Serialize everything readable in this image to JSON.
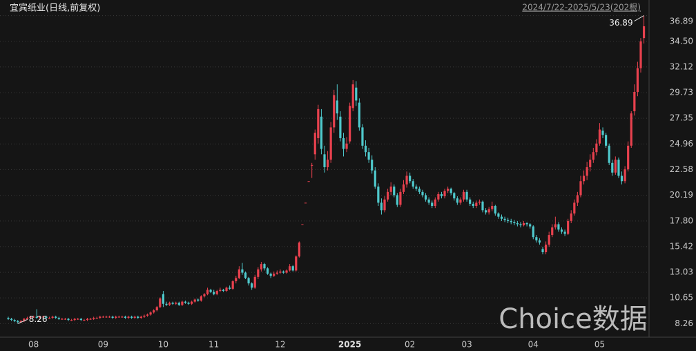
{
  "chart_data": {
    "type": "candlestick",
    "title": "宜宾纸业(日线,前复权)",
    "subtitle": "2024/7/22-2025/5/23(202根)",
    "watermark": "Choice数据",
    "up_color": "#e8414e",
    "down_color": "#4fc9cc",
    "ylim": [
      7.0,
      37.7
    ],
    "yticks": [
      8.26,
      10.65,
      13.03,
      15.42,
      {
        "value": 17.8,
        "label": "17.80"
      },
      20.19,
      22.58,
      24.96,
      27.35,
      29.73,
      32.12,
      {
        "value": 34.5,
        "label": "34.50"
      },
      36.89
    ],
    "grid": true,
    "categories": [
      null,
      null,
      null,
      null,
      null,
      null,
      null,
      null,
      "08",
      null,
      null,
      null,
      null,
      null,
      null,
      null,
      null,
      null,
      null,
      null,
      null,
      null,
      null,
      null,
      null,
      null,
      null,
      null,
      null,
      null,
      "09",
      null,
      null,
      null,
      null,
      null,
      null,
      null,
      null,
      null,
      null,
      null,
      null,
      null,
      null,
      null,
      null,
      null,
      null,
      "10",
      null,
      null,
      null,
      null,
      null,
      null,
      null,
      null,
      null,
      null,
      null,
      null,
      null,
      null,
      null,
      "11",
      null,
      null,
      null,
      null,
      null,
      null,
      null,
      null,
      null,
      null,
      null,
      null,
      null,
      null,
      null,
      null,
      null,
      null,
      null,
      null,
      "12",
      null,
      null,
      null,
      null,
      null,
      null,
      null,
      null,
      null,
      null,
      null,
      null,
      null,
      null,
      null,
      null,
      null,
      null,
      null,
      null,
      null,
      "2025",
      null,
      null,
      null,
      null,
      null,
      null,
      null,
      null,
      null,
      null,
      null,
      null,
      null,
      null,
      null,
      null,
      null,
      null,
      "02",
      null,
      null,
      null,
      null,
      null,
      null,
      null,
      null,
      null,
      null,
      null,
      null,
      null,
      null,
      null,
      null,
      null,
      "03",
      null,
      null,
      null,
      null,
      null,
      null,
      null,
      null,
      null,
      null,
      null,
      null,
      null,
      null,
      null,
      null,
      null,
      null,
      null,
      null,
      "04",
      null,
      null,
      null,
      null,
      null,
      null,
      null,
      null,
      null,
      null,
      null,
      null,
      null,
      null,
      null,
      null,
      null,
      null,
      null,
      null,
      "05",
      null,
      null,
      null,
      null,
      null,
      null,
      null,
      null,
      null,
      null,
      null,
      null,
      null,
      null
    ],
    "open": [
      8.8,
      8.7,
      8.6,
      8.5,
      8.4,
      8.5,
      8.7,
      8.8,
      8.9,
      8.9,
      8.8,
      8.9,
      8.9,
      8.8,
      8.8,
      8.9,
      8.8,
      8.7,
      8.7,
      8.7,
      8.6,
      8.6,
      8.7,
      8.7,
      8.6,
      8.6,
      8.7,
      8.7,
      8.8,
      8.8,
      8.9,
      8.9,
      8.9,
      8.9,
      8.8,
      8.9,
      8.9,
      8.9,
      8.8,
      8.9,
      8.8,
      8.9,
      8.8,
      8.9,
      9.0,
      9.1,
      9.3,
      9.5,
      9.8,
      11.0,
      10.1,
      10.0,
      10.2,
      10.1,
      10.2,
      10.0,
      10.3,
      10.2,
      10.1,
      10.3,
      10.5,
      10.4,
      10.8,
      11.0,
      11.4,
      11.2,
      11.0,
      11.3,
      11.4,
      11.3,
      11.6,
      11.5,
      12.2,
      12.5,
      13.3,
      13.0,
      12.5,
      12.0,
      11.6,
      12.6,
      13.3,
      13.8,
      13.4,
      12.9,
      12.7,
      12.9,
      13.0,
      13.1,
      13.0,
      13.2,
      13.6,
      13.2,
      14.5,
      17.5,
      19.5,
      21.5,
      23.0,
      24.0,
      25.5,
      27.5,
      24.0,
      22.8,
      23.5,
      26.5,
      29.0,
      27.5,
      25.5,
      24.5,
      25.2,
      28.3,
      30.2,
      28.8,
      26.5,
      24.8,
      24.2,
      23.5,
      22.5,
      21.0,
      19.5,
      18.8,
      19.8,
      20.5,
      21.0,
      20.2,
      19.3,
      20.5,
      21.2,
      22.0,
      21.5,
      21.0,
      20.8,
      20.5,
      20.2,
      19.8,
      19.5,
      19.2,
      19.8,
      20.3,
      20.1,
      20.6,
      20.8,
      20.4,
      19.9,
      19.5,
      19.8,
      20.5,
      19.8,
      19.4,
      19.2,
      19.5,
      19.6,
      18.8,
      18.6,
      18.9,
      19.2,
      18.5,
      18.2,
      18.0,
      17.9,
      17.8,
      17.7,
      17.6,
      17.5,
      17.4,
      17.6,
      17.5,
      17.3,
      16.3,
      16.0,
      15.2,
      14.9,
      15.6,
      16.5,
      17.2,
      17.5,
      17.0,
      16.8,
      16.6,
      17.8,
      18.5,
      19.5,
      20.2,
      21.5,
      22.0,
      22.8,
      23.5,
      24.2,
      25.0,
      26.2,
      25.8,
      24.8,
      23.2,
      22.3,
      23.5,
      22.0,
      21.5,
      22.6,
      24.8,
      28.0,
      29.8,
      32.0,
      34.8
    ],
    "high": [
      8.9,
      8.8,
      8.7,
      8.6,
      8.6,
      8.8,
      8.9,
      9.0,
      9.0,
      9.6,
      9.0,
      9.0,
      9.0,
      8.9,
      9.0,
      9.0,
      8.9,
      8.8,
      8.8,
      8.8,
      8.7,
      8.8,
      8.8,
      8.8,
      8.7,
      8.8,
      8.8,
      8.9,
      8.9,
      9.0,
      9.0,
      9.0,
      9.0,
      9.0,
      9.0,
      9.0,
      9.0,
      9.0,
      9.0,
      9.0,
      9.0,
      9.0,
      9.0,
      9.1,
      9.2,
      9.4,
      9.6,
      9.9,
      10.7,
      11.3,
      10.3,
      10.3,
      10.3,
      10.3,
      10.3,
      10.4,
      10.4,
      10.3,
      10.4,
      10.6,
      10.6,
      10.9,
      11.1,
      11.6,
      11.5,
      11.4,
      11.4,
      11.6,
      11.5,
      11.7,
      11.8,
      12.3,
      12.7,
      13.6,
      13.9,
      13.1,
      12.6,
      12.1,
      12.8,
      13.5,
      14.0,
      13.9,
      13.5,
      13.0,
      13.1,
      13.2,
      13.3,
      13.2,
      13.3,
      13.8,
      13.7,
      14.6,
      15.9,
      17.5,
      19.5,
      21.5,
      23.2,
      26.3,
      28.6,
      28.2,
      24.8,
      24.3,
      27.0,
      30.0,
      30.5,
      28.0,
      26.0,
      25.6,
      28.8,
      30.9,
      30.8,
      29.2,
      26.8,
      25.3,
      24.6,
      23.9,
      22.8,
      21.3,
      19.9,
      20.1,
      20.8,
      21.4,
      21.2,
      20.4,
      20.8,
      21.6,
      22.4,
      22.3,
      21.7,
      21.2,
      21.0,
      20.7,
      20.4,
      20.0,
      19.7,
      20.0,
      20.5,
      20.5,
      20.8,
      21.0,
      20.9,
      20.5,
      20.1,
      20.0,
      20.7,
      20.7,
      20.0,
      19.6,
      19.7,
      19.8,
      19.7,
      19.0,
      19.1,
      19.6,
      19.3,
      18.6,
      18.4,
      18.2,
      18.1,
      18.0,
      17.9,
      17.8,
      17.7,
      17.8,
      17.7,
      17.6,
      17.4,
      16.5,
      16.2,
      15.4,
      15.9,
      16.8,
      17.5,
      18.2,
      17.7,
      17.2,
      17.0,
      18.0,
      18.8,
      19.8,
      20.5,
      22.0,
      22.5,
      23.3,
      24.0,
      24.6,
      25.4,
      26.9,
      26.5,
      26.0,
      25.0,
      23.5,
      23.8,
      23.7,
      22.4,
      22.9,
      25.2,
      28.0,
      30.5,
      32.6,
      34.8,
      36.89
    ],
    "low": [
      8.6,
      8.5,
      8.4,
      8.26,
      8.3,
      8.4,
      8.6,
      8.7,
      8.8,
      8.7,
      8.7,
      8.8,
      8.7,
      8.7,
      8.7,
      8.7,
      8.6,
      8.6,
      8.6,
      8.5,
      8.5,
      8.5,
      8.6,
      8.5,
      8.5,
      8.5,
      8.6,
      8.6,
      8.7,
      8.7,
      8.8,
      8.8,
      8.8,
      8.7,
      8.7,
      8.8,
      8.8,
      8.7,
      8.7,
      8.7,
      8.7,
      8.7,
      8.7,
      8.8,
      8.9,
      9.0,
      9.2,
      9.4,
      9.7,
      9.8,
      9.9,
      9.9,
      10.0,
      10.0,
      9.9,
      9.9,
      10.1,
      10.0,
      10.0,
      10.2,
      10.3,
      10.3,
      10.7,
      10.9,
      11.1,
      10.9,
      10.9,
      11.2,
      11.2,
      11.2,
      11.4,
      11.4,
      12.0,
      12.4,
      12.8,
      12.4,
      11.8,
      11.4,
      11.5,
      12.4,
      13.1,
      13.2,
      12.8,
      12.5,
      12.6,
      12.8,
      12.9,
      12.9,
      12.9,
      13.1,
      13.1,
      13.1,
      14.4,
      17.5,
      19.5,
      21.5,
      21.8,
      23.5,
      25.0,
      24.0,
      22.3,
      22.5,
      23.2,
      26.0,
      27.2,
      25.2,
      23.8,
      24.2,
      25.0,
      28.0,
      28.5,
      26.2,
      24.5,
      23.8,
      23.2,
      22.2,
      20.8,
      19.2,
      18.4,
      18.6,
      19.6,
      20.2,
      20.0,
      19.1,
      19.1,
      20.3,
      20.9,
      21.3,
      20.8,
      20.6,
      20.3,
      20.0,
      19.6,
      19.3,
      19.0,
      19.0,
      19.6,
      19.9,
      19.9,
      20.4,
      20.2,
      19.7,
      19.3,
      19.3,
      19.6,
      19.6,
      19.2,
      19.0,
      19.0,
      19.3,
      18.6,
      18.4,
      18.4,
      18.7,
      18.3,
      18.0,
      17.8,
      17.7,
      17.6,
      17.5,
      17.4,
      17.3,
      17.2,
      17.3,
      17.3,
      17.1,
      16.1,
      15.8,
      15.6,
      14.7,
      14.7,
      15.4,
      16.3,
      17.0,
      16.8,
      16.6,
      16.4,
      16.5,
      17.6,
      18.3,
      19.2,
      20.0,
      21.2,
      21.6,
      22.4,
      23.2,
      23.9,
      24.8,
      25.5,
      24.6,
      23.0,
      22.0,
      22.1,
      21.8,
      21.2,
      21.3,
      22.4,
      24.6,
      27.6,
      29.4,
      31.6,
      34.3
    ],
    "close": [
      8.7,
      8.6,
      8.5,
      8.4,
      8.5,
      8.7,
      8.8,
      8.9,
      8.9,
      8.8,
      8.9,
      8.9,
      8.8,
      8.8,
      8.9,
      8.8,
      8.7,
      8.7,
      8.7,
      8.6,
      8.6,
      8.7,
      8.7,
      8.6,
      8.6,
      8.7,
      8.7,
      8.8,
      8.8,
      8.9,
      8.9,
      8.9,
      8.9,
      8.8,
      8.9,
      8.9,
      8.9,
      8.8,
      8.9,
      8.8,
      8.9,
      8.8,
      8.9,
      9.0,
      9.1,
      9.3,
      9.5,
      9.8,
      10.6,
      10.1,
      10.0,
      10.2,
      10.1,
      10.2,
      10.0,
      10.3,
      10.2,
      10.1,
      10.3,
      10.5,
      10.4,
      10.8,
      11.0,
      11.4,
      11.2,
      11.0,
      11.3,
      11.4,
      11.3,
      11.6,
      11.5,
      12.2,
      12.5,
      13.3,
      13.0,
      12.5,
      12.0,
      11.6,
      12.6,
      13.3,
      13.8,
      13.4,
      12.9,
      12.7,
      12.9,
      13.0,
      13.1,
      13.0,
      13.2,
      13.6,
      13.2,
      14.5,
      15.8,
      17.5,
      19.5,
      21.5,
      23.0,
      26.0,
      28.2,
      24.5,
      22.8,
      23.5,
      26.5,
      29.5,
      27.8,
      25.5,
      24.5,
      25.0,
      28.5,
      30.5,
      29.0,
      26.5,
      24.8,
      24.2,
      23.5,
      22.5,
      21.0,
      19.5,
      18.8,
      19.8,
      20.5,
      21.0,
      20.2,
      19.3,
      20.5,
      21.2,
      22.0,
      21.5,
      21.0,
      20.8,
      20.5,
      20.2,
      19.8,
      19.5,
      19.2,
      19.8,
      20.3,
      20.1,
      20.6,
      20.8,
      20.4,
      19.9,
      19.5,
      19.8,
      20.5,
      19.8,
      19.4,
      19.2,
      19.5,
      19.6,
      18.8,
      18.6,
      18.9,
      19.2,
      18.5,
      18.2,
      18.0,
      17.9,
      17.8,
      17.7,
      17.6,
      17.5,
      17.4,
      17.6,
      17.5,
      17.3,
      16.3,
      16.0,
      15.8,
      14.9,
      15.6,
      16.5,
      17.2,
      17.5,
      17.0,
      16.8,
      16.6,
      17.8,
      18.5,
      19.5,
      20.2,
      21.5,
      22.0,
      22.8,
      23.5,
      24.2,
      25.0,
      26.3,
      25.8,
      24.8,
      23.2,
      22.3,
      23.5,
      22.0,
      21.5,
      22.6,
      24.8,
      27.8,
      29.8,
      32.0,
      34.5,
      35.9
    ]
  }
}
